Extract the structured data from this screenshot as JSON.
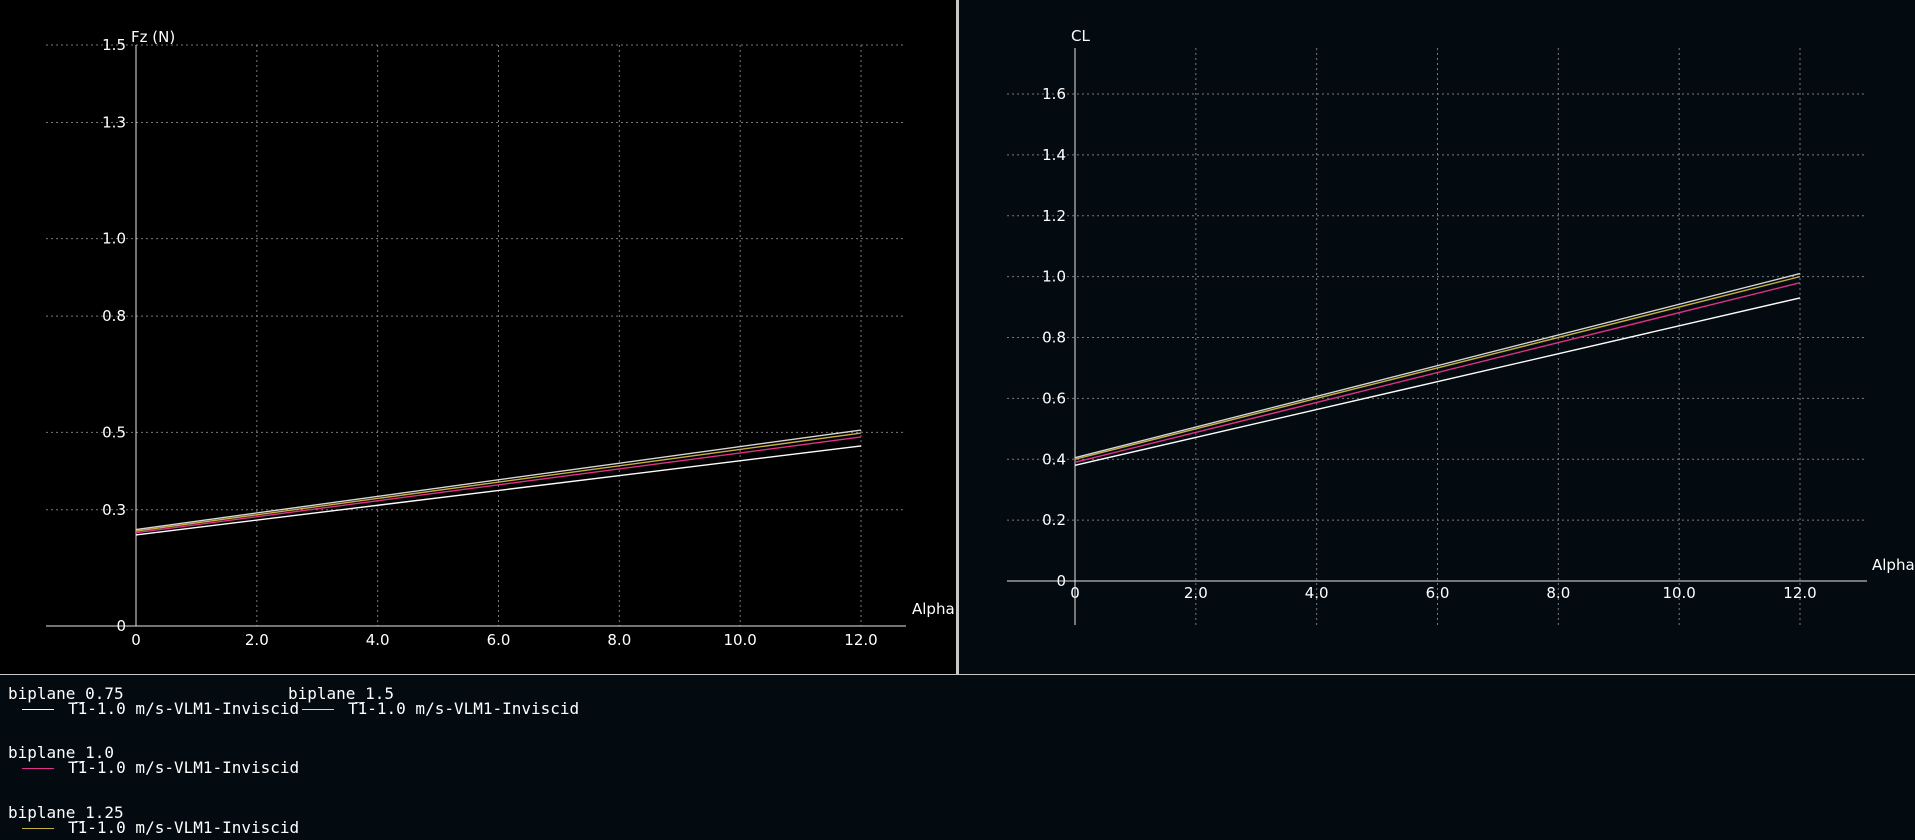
{
  "chart_data": [
    {
      "type": "line",
      "ylabel": "Fz (N)",
      "xlabel": "Alpha",
      "xlim": [
        0,
        12
      ],
      "ylim": [
        0,
        1.5
      ],
      "x_ticks": [
        "0",
        "2.0",
        "4.0",
        "6.0",
        "8.0",
        "10.0",
        "12.0"
      ],
      "y_ticks": [
        "0",
        "0.3",
        "0.5",
        "0.8",
        "1.0",
        "1.3",
        "1.5"
      ],
      "grid": true,
      "x": [
        0,
        12
      ],
      "series": [
        {
          "name": "biplane_0.75",
          "color": "#ffffff",
          "values": [
            0.235,
            0.465
          ]
        },
        {
          "name": "biplane_1.0",
          "color": "#e0308a",
          "values": [
            0.241,
            0.488
          ]
        },
        {
          "name": "biplane_1.25",
          "color": "#c8b040",
          "values": [
            0.245,
            0.498
          ]
        },
        {
          "name": "biplane_1.5",
          "color": "#d8d8d8",
          "values": [
            0.249,
            0.506
          ]
        }
      ]
    },
    {
      "type": "line",
      "ylabel": "CL",
      "xlabel": "Alpha",
      "xlim": [
        0,
        12
      ],
      "ylim": [
        0,
        1.6
      ],
      "x_ticks": [
        "0",
        "2.0",
        "4.0",
        "6.0",
        "8.0",
        "10.0",
        "12.0"
      ],
      "y_ticks": [
        "0",
        "0.2",
        "0.4",
        "0.6",
        "0.8",
        "1.0",
        "1.2",
        "1.4",
        "1.6"
      ],
      "grid": true,
      "x": [
        0,
        12
      ],
      "series": [
        {
          "name": "biplane_0.75",
          "color": "#ffffff",
          "values": [
            0.38,
            0.93
          ]
        },
        {
          "name": "biplane_1.0",
          "color": "#e0308a",
          "values": [
            0.39,
            0.98
          ]
        },
        {
          "name": "biplane_1.25",
          "color": "#c8b040",
          "values": [
            0.4,
            1.0
          ]
        },
        {
          "name": "biplane_1.5",
          "color": "#d8d8d8",
          "values": [
            0.405,
            1.01
          ]
        }
      ]
    }
  ],
  "legend": [
    {
      "name": "biplane_0.75",
      "entry": "T1-1.0 m/s-VLM1-Inviscid",
      "color": "#ffffff"
    },
    {
      "name": "biplane_1.5",
      "entry": "T1-1.0 m/s-VLM1-Inviscid",
      "color": "#d8d8d8"
    },
    {
      "name": "biplane_1.0",
      "entry": "T1-1.0 m/s-VLM1-Inviscid",
      "color": "#e0308a"
    },
    {
      "name": "biplane_1.25",
      "entry": "T1-1.0 m/s-VLM1-Inviscid",
      "color": "#c8b040"
    }
  ]
}
